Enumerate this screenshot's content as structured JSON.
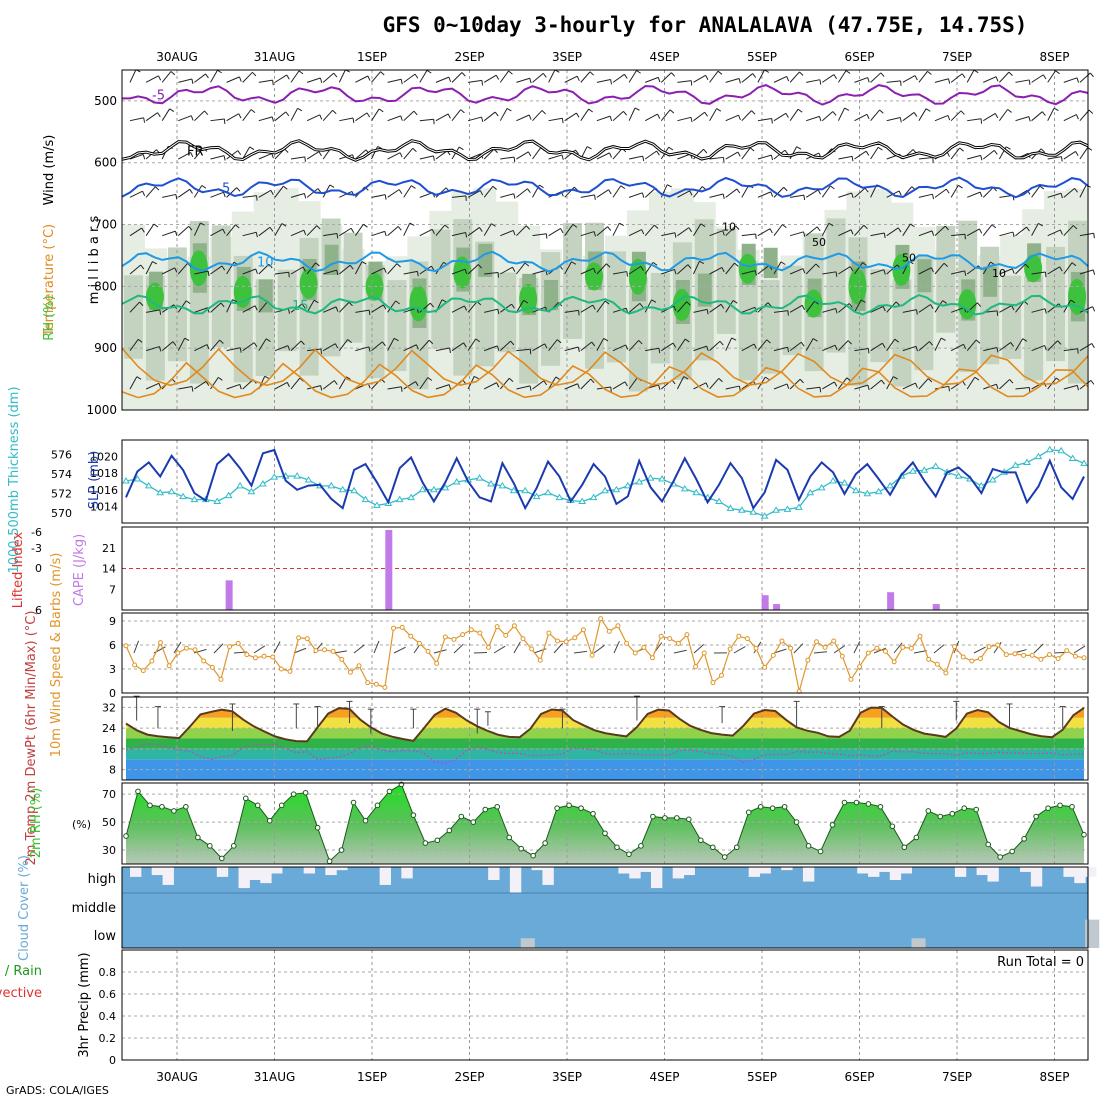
{
  "title": "GFS 0~10day 3-hourly for ANALALAVA (47.75E, 14.75S)",
  "footer": "GrADS: COLA/IGES",
  "colors": {
    "rh_green": "#3ec23e",
    "temp_orange": "#e08a1e",
    "cape": "#c27ae8",
    "thick": "#33bcc8",
    "slp": "#1a3ab0",
    "wind": "#e0962a",
    "rh2m": "#2fc82f",
    "cloud": "#6aaad8",
    "li": "#e03030"
  },
  "chart_data": {
    "type": "meteogram",
    "x_dates": [
      "30AUG",
      "31AUG",
      "1SEP",
      "2SEP",
      "3SEP",
      "4SEP",
      "5SEP",
      "6SEP",
      "7SEP",
      "8SEP"
    ],
    "panels": [
      {
        "name": "upper-air",
        "ylabel_parts": [
          "Wind (m/s)",
          "Temperature (°C)",
          "RH (%)"
        ],
        "ylabel2": "m i l l i b a r s",
        "y_ticks": [
          500,
          600,
          700,
          800,
          900,
          1000
        ],
        "contours": [
          {
            "label": "-5",
            "level_mb": 490,
            "color": "#8a1fb0"
          },
          {
            "label": "FR",
            "level_mb": 580,
            "color": "#000000"
          },
          {
            "label": "5",
            "level_mb": 640,
            "color": "#1f4fd0"
          },
          {
            "label": "10",
            "level_mb": 760,
            "color": "#1f9ae6"
          },
          {
            "label": "15",
            "level_mb": 830,
            "color": "#1fb880"
          }
        ],
        "rh_labels": [
          "10",
          "50",
          "50",
          "10"
        ]
      },
      {
        "name": "thickness-slp",
        "ylabel_left": "1000-500mb Thickness (dm)",
        "ylabel_right": "SLP (mb)",
        "thick_ticks": [
          570,
          572,
          574,
          576
        ],
        "slp_ticks": [
          1014,
          1016,
          1018,
          1020
        ],
        "slp_range": [
          1012,
          1022
        ],
        "thick_range": [
          569,
          577.5
        ],
        "slp": [
          1015.1,
          1018.2,
          1019.3,
          1017.6,
          1020.1,
          1018.4,
          1015.6,
          1014.7,
          1019.1,
          1020.3,
          1018.6,
          1016.5,
          1020.4,
          1020.8,
          1017.1,
          1016,
          1016.5,
          1016.6,
          1014.9,
          1013.8,
          1018.4,
          1019.1,
          1016.9,
          1014.5,
          1018.6,
          1019.9,
          1016.9,
          1014.6,
          1016.9,
          1019.8,
          1017,
          1015.1,
          1014.6,
          1019.2,
          1016.8,
          1013.8,
          1016.2,
          1019.4,
          1017.6,
          1014.6,
          1016.6,
          1019.1,
          1017.6,
          1014.3,
          1015.2,
          1019.5,
          1016.3,
          1014.6,
          1017,
          1019.8,
          1017.3,
          1014.5,
          1016.6,
          1019.2,
          1017.4,
          1013.8,
          1015.7,
          1019.6,
          1018.4,
          1014.8,
          1017.6,
          1019.3,
          1018.1,
          1015.5,
          1017.9,
          1019.1,
          1017.3,
          1015.4,
          1017.8,
          1019.3,
          1017.1,
          1015.2,
          1018.1,
          1018.7,
          1017.5,
          1015.6,
          1018.5,
          1018.1,
          1018.1,
          1014.5,
          1016.4,
          1019.5,
          1016.3,
          1014.9,
          1017.6
        ],
        "thick": [
          573.3,
          573.5,
          572.8,
          572.1,
          572.2,
          571.7,
          571.4,
          571.4,
          571.2,
          571.8,
          572.8,
          572.2,
          573,
          573.7,
          573.8,
          573.8,
          573.4,
          572.8,
          572.8,
          572.4,
          572.3,
          571.4,
          570.8,
          571,
          571.4,
          571.6,
          572.4,
          572.4,
          572.6,
          573.2,
          573.4,
          573.6,
          573,
          572.8,
          572.3,
          572.3,
          571.7,
          572.1,
          571.6,
          571.3,
          571.2,
          571.6,
          572.3,
          572.4,
          572.8,
          573.2,
          573.6,
          573.5,
          573,
          572.5,
          572.1,
          571.6,
          571.2,
          570.5,
          570.3,
          570.1,
          569.7,
          570.3,
          570.4,
          570.6,
          572.1,
          572.6,
          573.3,
          573.1,
          572.3,
          572,
          572.2,
          572.8,
          573.8,
          574.3,
          574.4,
          574.8,
          574.2,
          573.8,
          573.5,
          572.8,
          573.4,
          574.2,
          574.9,
          575.2,
          575.8,
          576.5,
          576.4,
          575.6,
          575.1
        ]
      },
      {
        "name": "cape-li",
        "ylabel_left": "Lifted Index",
        "ylabel_right": "CAPE (J/kg)",
        "li_ticks": [
          6,
          0,
          -3,
          -6
        ],
        "cape_ticks": [
          7,
          14,
          21
        ],
        "cape_range": [
          0,
          28
        ],
        "cape": [
          0,
          0,
          0,
          0,
          0,
          0,
          0,
          0,
          0,
          10,
          0,
          0,
          0,
          0,
          0,
          0,
          0,
          0,
          0,
          0,
          0,
          0,
          0,
          27,
          0,
          0,
          0,
          0,
          0,
          0,
          0,
          0,
          0,
          0,
          0,
          0,
          0,
          0,
          0,
          0,
          0,
          0,
          0,
          0,
          0,
          0,
          0,
          0,
          0,
          0,
          0,
          0,
          0,
          0,
          0,
          0,
          5,
          2,
          0,
          0,
          0,
          0,
          0,
          0,
          0,
          0,
          0,
          6,
          0,
          0,
          0,
          2,
          0,
          0,
          0,
          0,
          0,
          0,
          0,
          0,
          0,
          0,
          0,
          0,
          0
        ]
      },
      {
        "name": "10m-wind",
        "ylabel": "10m Wind Speed & Barbs (m/s)",
        "y_ticks": [
          0,
          3,
          6,
          9
        ],
        "y_range": [
          0,
          10
        ],
        "speed": [
          5.9,
          3.5,
          2.8,
          4,
          6.3,
          3.4,
          5,
          5.6,
          5.4,
          4,
          3.2,
          1.7,
          5.8,
          6.2,
          4.8,
          4.4,
          4.6,
          4.5,
          3,
          2.7,
          6.9,
          6.8,
          5.3,
          5.4,
          5.2,
          4.2,
          2.6,
          3.4,
          1.3,
          1.1,
          0.7,
          8.1,
          8.2,
          7.1,
          6.2,
          5.2,
          3.7,
          7,
          6.7,
          7.3,
          7.9,
          7.5,
          5.7,
          8.3,
          7.2,
          8.4,
          6.8,
          5.5,
          4.1,
          7.5,
          6.5,
          6.4,
          6.9,
          7.9,
          4.7,
          9.3,
          7.7,
          8.4,
          6.2,
          5,
          5.7,
          4.4,
          7.1,
          6.8,
          6.2,
          7.3,
          3.3,
          5,
          1.3,
          2.2,
          5.5,
          7.1,
          6.8,
          5.6,
          3.2,
          4.7,
          6.5,
          5.6,
          0.2,
          4.1,
          6.4,
          5.7,
          6.5,
          4.6,
          1.7,
          3.3,
          5,
          5.6,
          5.2,
          3.9,
          5.7,
          5.6,
          7.1,
          4.2,
          3.6,
          2.5,
          5.8,
          4.5,
          4,
          4.3,
          5.8,
          6,
          4.8,
          4.9,
          4.7,
          4.7,
          4.2,
          4.8,
          4.3,
          5.3,
          4.6,
          4.4
        ]
      },
      {
        "name": "2m-temp",
        "ylabel": "2m Temp 2m DewPt (6hr Min/Max) (°C)",
        "y_ticks": [
          8,
          16,
          24,
          32
        ],
        "y_range": [
          4,
          36
        ],
        "temp": [
          25.8,
          23.2,
          21.5,
          20.9,
          20.5,
          20.2,
          24.6,
          29.3,
          30.3,
          31.1,
          30.5,
          27.3,
          24.7,
          22.7,
          20.8,
          19.7,
          19,
          18.9,
          24.3,
          29.6,
          31.7,
          31.4,
          27.3,
          24.3,
          22,
          20.7,
          19.8,
          19.1,
          24,
          29.1,
          31.5,
          29.9,
          27,
          24.7,
          22.9,
          21.4,
          20.6,
          20.5,
          23.8,
          29.5,
          31.2,
          30.8,
          27.1,
          25.1,
          23.2,
          22.1,
          21.4,
          20.8,
          24.4,
          29.5,
          31.1,
          30.8,
          27.6,
          24.9,
          23.3,
          22.1,
          21.5,
          21.1,
          24.9,
          29.6,
          31,
          30.6,
          27.2,
          24.3,
          23,
          22.2,
          20.8,
          20.6,
          23,
          29.9,
          31.9,
          31.8,
          28.5,
          25.4,
          23.3,
          21.9,
          21.3,
          20.6,
          23.9,
          29.6,
          31,
          30.1,
          26.4,
          24.1,
          22.9,
          21.7,
          20.9,
          20.5,
          23.4,
          29,
          31.8
        ],
        "dewpt": [
          15.6,
          16.6,
          17.9,
          17.6,
          16.4,
          15.6,
          15.1,
          13,
          12.1,
          12.9,
          13.4,
          16.5,
          17.5,
          17.7,
          17.6,
          16.2,
          14.6,
          14.9,
          12,
          12.4,
          12.9,
          14,
          16.5,
          16.9,
          15.6,
          14.8,
          15.4,
          15.3,
          14.5,
          11.1,
          10.5,
          12,
          15.5,
          16.6,
          15.8,
          14.6,
          14.2,
          14.3,
          13.2,
          13.5,
          13.6,
          14,
          16.2,
          16.2,
          15.6,
          14.3,
          13.9,
          14.3,
          13.9,
          13.6,
          13.7,
          13.5,
          15.4,
          15.6,
          14.9,
          14.1,
          14,
          13.1,
          10.8,
          12,
          13.6,
          14,
          13.7,
          15,
          14.7,
          14.8,
          14.2,
          14,
          13.3,
          13.7,
          13.1,
          13.5,
          15.1,
          14.8,
          14.9,
          14.3,
          14.2,
          14.1,
          13.5,
          14.5,
          14.3,
          14.1,
          14.7,
          14.4,
          14.4,
          14.1,
          14.2,
          14.5,
          13.7,
          14,
          14.1
        ],
        "errbars": [
          [
            1,
            30,
            34
          ],
          [
            3,
            30,
            27
          ],
          [
            10,
            31,
            26
          ],
          [
            16,
            27,
            31
          ],
          [
            18,
            30,
            27
          ],
          [
            21,
            32,
            29
          ],
          [
            23,
            25,
            29
          ],
          [
            27,
            29,
            27
          ],
          [
            33,
            29,
            25
          ],
          [
            34,
            28,
            28
          ],
          [
            41,
            29,
            27
          ],
          [
            48,
            30,
            34
          ],
          [
            56,
            29,
            30
          ],
          [
            63,
            32,
            27
          ],
          [
            71,
            27,
            30
          ],
          [
            78,
            30,
            32
          ],
          [
            83,
            31,
            27
          ],
          [
            88,
            30,
            27
          ]
        ]
      },
      {
        "name": "2m-rh",
        "ylabel": "2m RH (%)",
        "y_ticks": [
          30,
          50,
          70
        ],
        "y_range": [
          20,
          78
        ],
        "rh": [
          40,
          72,
          62,
          61,
          58,
          61,
          39,
          33,
          24,
          33,
          67,
          62,
          51,
          62,
          70,
          71,
          46,
          22,
          30,
          64,
          51,
          62,
          72,
          77,
          55,
          35,
          37,
          44,
          54,
          50,
          59,
          61,
          39,
          31,
          26,
          35,
          60,
          62,
          60,
          56,
          42,
          32,
          27,
          33,
          54,
          53,
          53,
          52,
          37,
          32,
          25,
          32,
          57,
          61,
          60,
          61,
          50,
          33,
          29,
          48,
          64,
          64,
          63,
          61,
          47,
          32,
          39,
          58,
          54,
          56,
          60,
          59,
          34,
          25,
          29,
          38,
          54,
          60,
          62,
          61,
          41
        ]
      },
      {
        "name": "cloud",
        "ylabel": "Cloud Cover (%)",
        "labels": [
          "high",
          "middle",
          "low"
        ],
        "high_gaps": [
          [
            0,
            0.38
          ],
          [
            2,
            0.31
          ],
          [
            3,
            0.69
          ],
          [
            8,
            0.38
          ],
          [
            10,
            0.81
          ],
          [
            11,
            0.5
          ],
          [
            12,
            0.62
          ],
          [
            13,
            0.25
          ],
          [
            16,
            0.25
          ],
          [
            18,
            0.31
          ],
          [
            19,
            0.12
          ],
          [
            23,
            0.69
          ],
          [
            25,
            0.44
          ],
          [
            33,
            0.5
          ],
          [
            35,
            1
          ],
          [
            37,
            0.12
          ],
          [
            38,
            0.69
          ],
          [
            45,
            0.25
          ],
          [
            46,
            0.44
          ],
          [
            47,
            0.19
          ],
          [
            48,
            0.81
          ],
          [
            50,
            0.44
          ],
          [
            51,
            0.31
          ],
          [
            57,
            0.38
          ],
          [
            58,
            0.25
          ],
          [
            60,
            0.12
          ],
          [
            62,
            0.56
          ],
          [
            67,
            0.25
          ],
          [
            68,
            0.38
          ],
          [
            69,
            0.19
          ],
          [
            70,
            0.5
          ],
          [
            71,
            0.25
          ],
          [
            76,
            0.38
          ],
          [
            78,
            0.31
          ],
          [
            79,
            0.56
          ],
          [
            82,
            0.19
          ],
          [
            83,
            0.75
          ],
          [
            86,
            0.38
          ],
          [
            87,
            0.62
          ],
          [
            88,
            0.38
          ]
        ],
        "low_bars": [
          [
            36,
            0.12
          ],
          [
            72,
            0.12
          ],
          [
            88,
            0.35
          ]
        ]
      },
      {
        "name": "precip",
        "ylabel": "3hr Precip (mm)",
        "ylabel_left_parts": [
          "Total / Rain",
          "Convective"
        ],
        "y_ticks": [
          0,
          0.2,
          0.4,
          0.6,
          0.8
        ],
        "y_range": [
          0,
          1
        ],
        "run_total": "Run Total = 0"
      }
    ]
  }
}
